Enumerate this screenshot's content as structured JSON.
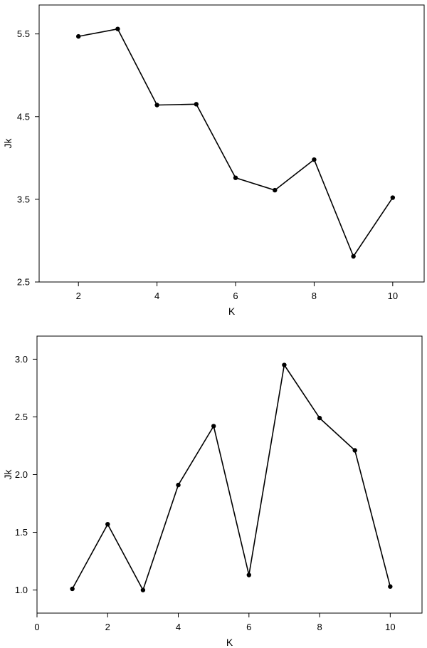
{
  "chart_data": [
    {
      "type": "line",
      "title": "",
      "xlabel": "K",
      "ylabel": "Jk",
      "xlim": [
        1.0,
        10.8
      ],
      "ylim": [
        2.5,
        5.85
      ],
      "xticks": [
        2,
        4,
        6,
        8,
        10
      ],
      "xtick_labels": [
        "2",
        "4",
        "6",
        "8",
        "10"
      ],
      "yticks": [
        2.5,
        3.5,
        4.5,
        5.5
      ],
      "ytick_labels": [
        "2.5",
        "3.5",
        "4.5",
        "5.5"
      ],
      "grid": false,
      "series": [
        {
          "x": [
            2,
            3,
            4,
            5,
            6,
            7,
            8,
            9,
            10
          ],
          "y": [
            5.47,
            5.56,
            4.64,
            4.65,
            3.76,
            3.61,
            3.98,
            2.81,
            3.52
          ]
        }
      ]
    },
    {
      "type": "line",
      "title": "",
      "xlabel": "K",
      "ylabel": "Jk",
      "xlim": [
        0.0,
        10.9
      ],
      "ylim": [
        0.8,
        3.2
      ],
      "xticks": [
        0,
        2,
        4,
        6,
        8,
        10
      ],
      "xtick_labels": [
        "0",
        "2",
        "4",
        "6",
        "8",
        "10"
      ],
      "yticks": [
        1.0,
        1.5,
        2.0,
        2.5,
        3.0
      ],
      "ytick_labels": [
        "1.0",
        "1.5",
        "2.0",
        "2.5",
        "3.0"
      ],
      "grid": false,
      "series": [
        {
          "x": [
            1,
            2,
            3,
            4,
            5,
            6,
            7,
            8,
            9,
            10
          ],
          "y": [
            1.01,
            1.57,
            1.0,
            1.91,
            2.42,
            1.13,
            2.95,
            2.49,
            2.21,
            1.03
          ]
        }
      ]
    }
  ]
}
